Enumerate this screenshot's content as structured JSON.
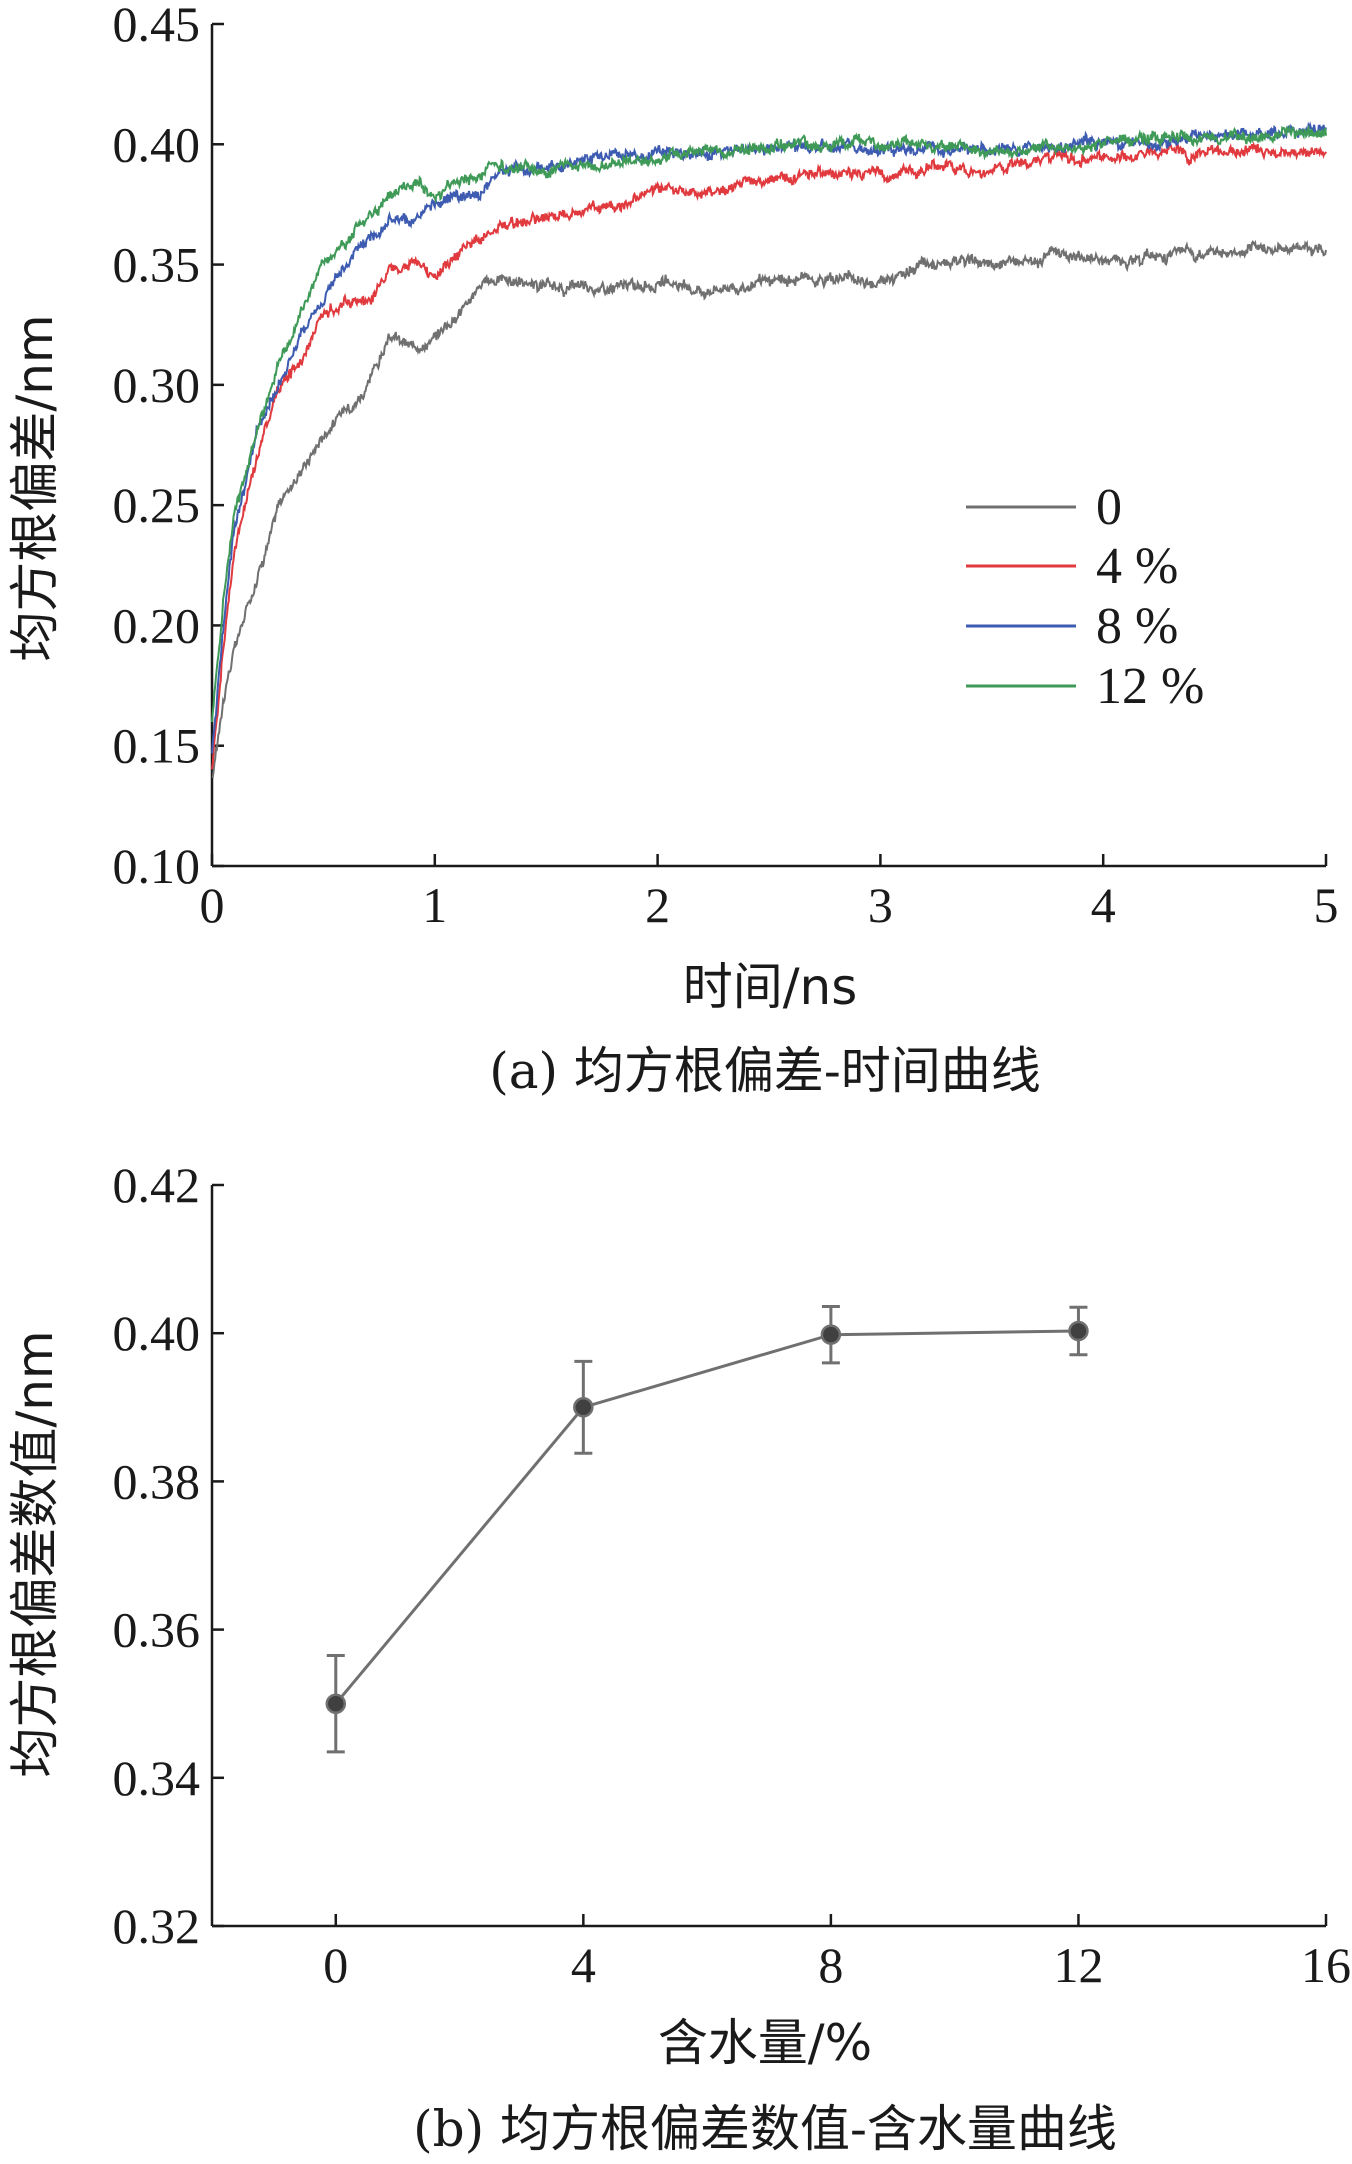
{
  "chart_data": [
    {
      "type": "line",
      "caption": "(a) 均方根偏差-时间曲线",
      "xlabel": "时间/ns",
      "ylabel": "均方根偏差/nm",
      "xlim": [
        0,
        5
      ],
      "ylim": [
        0.1,
        0.45
      ],
      "x_ticks": [
        "0",
        "1",
        "2",
        "3",
        "4",
        "5"
      ],
      "y_ticks": [
        "0.10",
        "0.15",
        "0.20",
        "0.25",
        "0.30",
        "0.35",
        "0.40",
        "0.45"
      ],
      "grid": false,
      "legend_position": "center-right",
      "series": [
        {
          "name": "0",
          "color": "#707070",
          "x": [
            0,
            0.05,
            0.1,
            0.2,
            0.3,
            0.4,
            0.5,
            0.6,
            0.7,
            0.8,
            0.9,
            1.0,
            1.1,
            1.2,
            1.3,
            1.5,
            1.8,
            2.0,
            2.2,
            2.5,
            2.8,
            3.0,
            3.2,
            3.5,
            3.8,
            4.0,
            4.3,
            4.6,
            4.9,
            5.0
          ],
          "y": [
            0.135,
            0.17,
            0.19,
            0.22,
            0.25,
            0.265,
            0.28,
            0.29,
            0.3,
            0.32,
            0.315,
            0.32,
            0.33,
            0.34,
            0.345,
            0.34,
            0.34,
            0.342,
            0.34,
            0.342,
            0.345,
            0.343,
            0.35,
            0.35,
            0.355,
            0.352,
            0.355,
            0.355,
            0.358,
            0.355
          ]
        },
        {
          "name": "4 %",
          "color": "#e0393e",
          "x": [
            0,
            0.05,
            0.1,
            0.2,
            0.3,
            0.4,
            0.5,
            0.6,
            0.7,
            0.8,
            0.9,
            1.0,
            1.1,
            1.2,
            1.3,
            1.5,
            1.8,
            2.0,
            2.2,
            2.5,
            2.8,
            3.0,
            3.2,
            3.5,
            3.8,
            4.0,
            4.3,
            4.6,
            4.9,
            5.0
          ],
          "y": [
            0.14,
            0.19,
            0.23,
            0.27,
            0.3,
            0.31,
            0.33,
            0.335,
            0.335,
            0.35,
            0.35,
            0.345,
            0.355,
            0.36,
            0.365,
            0.37,
            0.375,
            0.38,
            0.38,
            0.385,
            0.388,
            0.388,
            0.39,
            0.39,
            0.395,
            0.395,
            0.395,
            0.397,
            0.398,
            0.395
          ]
        },
        {
          "name": "8 %",
          "color": "#3d5bb0",
          "x": [
            0,
            0.05,
            0.1,
            0.2,
            0.3,
            0.4,
            0.5,
            0.6,
            0.7,
            0.8,
            0.9,
            1.0,
            1.1,
            1.2,
            1.3,
            1.5,
            1.8,
            2.0,
            2.2,
            2.5,
            2.8,
            3.0,
            3.2,
            3.5,
            3.8,
            4.0,
            4.3,
            4.6,
            4.9,
            5.0
          ],
          "y": [
            0.145,
            0.2,
            0.24,
            0.28,
            0.3,
            0.32,
            0.335,
            0.35,
            0.36,
            0.37,
            0.365,
            0.375,
            0.38,
            0.38,
            0.39,
            0.39,
            0.395,
            0.395,
            0.397,
            0.398,
            0.4,
            0.398,
            0.398,
            0.398,
            0.398,
            0.4,
            0.4,
            0.405,
            0.405,
            0.405
          ]
        },
        {
          "name": "12 %",
          "color": "#3f9a57",
          "x": [
            0,
            0.05,
            0.1,
            0.2,
            0.3,
            0.4,
            0.5,
            0.6,
            0.7,
            0.8,
            0.9,
            1.0,
            1.1,
            1.2,
            1.3,
            1.5,
            1.8,
            2.0,
            2.2,
            2.5,
            2.8,
            3.0,
            3.2,
            3.5,
            3.8,
            4.0,
            4.3,
            4.6,
            4.9,
            5.0
          ],
          "y": [
            0.16,
            0.21,
            0.245,
            0.28,
            0.31,
            0.33,
            0.35,
            0.36,
            0.37,
            0.38,
            0.385,
            0.38,
            0.385,
            0.387,
            0.39,
            0.39,
            0.392,
            0.395,
            0.397,
            0.398,
            0.4,
            0.4,
            0.4,
            0.397,
            0.398,
            0.4,
            0.402,
            0.403,
            0.405,
            0.404
          ]
        }
      ]
    },
    {
      "type": "line",
      "caption": "(b) 均方根偏差数值-含水量曲线",
      "xlabel": "含水量/%",
      "ylabel": "均方根偏差数值/nm",
      "xlim": [
        -2,
        16
      ],
      "ylim": [
        0.32,
        0.42
      ],
      "x_ticks": [
        "0",
        "4",
        "8",
        "12",
        "16"
      ],
      "y_ticks": [
        "0.32",
        "0.34",
        "0.36",
        "0.38",
        "0.40",
        "0.42"
      ],
      "grid": false,
      "series": [
        {
          "color": "#707070",
          "marker_color": "#404040",
          "x": [
            0,
            4,
            8,
            12
          ],
          "y": [
            0.35,
            0.39,
            0.3998,
            0.4003
          ],
          "error": [
            0.0065,
            0.0062,
            0.0038,
            0.0032
          ]
        }
      ]
    }
  ]
}
